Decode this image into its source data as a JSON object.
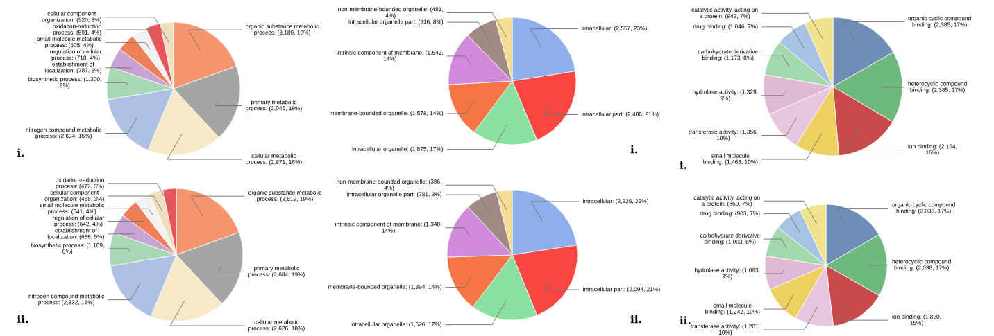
{
  "chart_data": [
    {
      "type": "pie",
      "categories": [
        "organic substance metabolic process",
        "primary metabolic process",
        "cellular metabolic process",
        "nitrogen compound metabolic process",
        "biosynthetic process",
        "establishment of localization",
        "regulation of cellular process",
        "small molecule metabolic process",
        "oxidation-reduction process",
        "cellular component organization"
      ],
      "values": [
        3189,
        3046,
        2971,
        2634,
        1300,
        787,
        718,
        605,
        591,
        520
      ],
      "value_labels": [
        "(3,189, 19%)",
        "(3,046, 19%)",
        "(2,971, 18%)",
        "(2,634, 16%)",
        "(1,300, 8%)",
        "(787, 5%)",
        "(718, 4%)",
        "(605, 4%)",
        "(591, 4%)",
        "(520, 3%)"
      ],
      "colors": [
        "#f7956f",
        "#a5a5a5",
        "#f8e9c6",
        "#aec0e5",
        "#a6d8b3",
        "#c9a3d4",
        "#f07f58",
        "#f2f2f2",
        "#e8555a",
        "#efdfbf"
      ],
      "annotations": [
        "i."
      ]
    },
    {
      "type": "pie",
      "categories": [
        "intracellular",
        "intracellular part",
        "intracellular organelle",
        "membrane-bounded organelle",
        "intrinsic component of membrane",
        "intracellular organelle part",
        "non-membrane-bounded organelle"
      ],
      "values": [
        2557,
        2406,
        1875,
        1578,
        1542,
        916,
        481
      ],
      "value_labels": [
        "(2,557, 23%)",
        "(2,406, 21%)",
        "(1,875, 17%)",
        "(1,578, 14%)",
        "(1,542, 14%)",
        "(916, 8%)",
        "(481, 4%)"
      ],
      "colors": [
        "#8db0ea",
        "#f84643",
        "#89e0a0",
        "#f57545",
        "#d189dc",
        "#a08a86",
        "#f7dc96"
      ],
      "annotations": [
        "i."
      ]
    },
    {
      "type": "pie",
      "categories": [
        "organic cyclic compound binding",
        "heterocyclic compound binding",
        "ion binding",
        "small molecule binding",
        "transferase activity",
        "hydrolase activity",
        "carbohydrate derivative binding",
        "drug binding",
        "catalytic activity, acting on a protein"
      ],
      "values": [
        2385,
        2385,
        2154,
        1463,
        1356,
        1329,
        1173,
        1046,
        943
      ],
      "value_labels": [
        "(2,385, 17%)",
        "(2,385, 17%)",
        "(2,154, 15%)",
        "(1,463, 10%)",
        "(1,356, 10%)",
        "(1,329, 9%)",
        "(1,173, 8%)",
        "(1,046, 7%)",
        "(943, 7%)"
      ],
      "colors": [
        "#6f8db7",
        "#6fb87f",
        "#c94a4a",
        "#ecd060",
        "#e8c5df",
        "#dfbad5",
        "#a4d8ad",
        "#a8c2e6",
        "#f0e38c"
      ],
      "annotations": [
        "i."
      ]
    },
    {
      "type": "pie",
      "categories": [
        "organic substance metabolic process",
        "primary metabolic process",
        "cellular metabolic process",
        "nitrogen compound metabolic process",
        "biosynthetic process",
        "establishment of localization",
        "regulation of cellular process",
        "small molecule metabolic process",
        "cellular component organization",
        "oxidation-reduction process"
      ],
      "values": [
        2819,
        2684,
        2626,
        2332,
        1169,
        686,
        642,
        541,
        488,
        472
      ],
      "value_labels": [
        "(2,819, 19%)",
        "(2,684, 19%)",
        "(2,626, 18%)",
        "(2,332, 16%)",
        "(1,169, 8%)",
        "(686, 5%)",
        "(642, 4%)",
        "(541, 4%)",
        "(488, 3%)",
        "(472, 3%)"
      ],
      "colors": [
        "#f7956f",
        "#a5a5a5",
        "#f8e9c6",
        "#aec0e5",
        "#a6d8b3",
        "#c9a3d4",
        "#f07f58",
        "#f2f2f2",
        "#efdfbf",
        "#e8555a"
      ],
      "annotations": [
        "ii."
      ]
    },
    {
      "type": "pie",
      "categories": [
        "intracellular",
        "intracellular part",
        "intracellular organelle",
        "membrane-bounded organelle",
        "intrinsic component of membrane",
        "intracellular organelle part",
        "non-membrane-bounded organelle"
      ],
      "values": [
        2225,
        2094,
        1626,
        1394,
        1348,
        781,
        386
      ],
      "value_labels": [
        "(2,225, 23%)",
        "(2,094, 21%)",
        "(1,626, 17%)",
        "(1,394, 14%)",
        "(1,348, 14%)",
        "(781, 8%)",
        "(386, 4%)"
      ],
      "colors": [
        "#8db0ea",
        "#f84643",
        "#89e0a0",
        "#f57545",
        "#d189dc",
        "#a08a86",
        "#f7dc96"
      ],
      "annotations": [
        "ii."
      ]
    },
    {
      "type": "pie",
      "categories": [
        "organic cyclic compound binding",
        "heterocyclic compound binding",
        "ion binding",
        "transferase activity",
        "small molecule binding",
        "hydrolase activity",
        "carbohydrate derivative binding",
        "drug binding",
        "catalytic activity, acting on a protein"
      ],
      "values": [
        2038,
        2038,
        1820,
        1261,
        1242,
        1093,
        1003,
        903,
        860
      ],
      "value_labels": [
        "(2,038, 17%)",
        "(2,038, 17%)",
        "(1,820, 15%)",
        "(1,261, 10%)",
        "(1,242, 10%)",
        "(1,093, 9%)",
        "(1,003, 8%)",
        "(903, 7%)",
        "(860, 7%)"
      ],
      "colors": [
        "#6f8db7",
        "#6fb87f",
        "#c94a4a",
        "#e8c5df",
        "#ecd060",
        "#dfbad5",
        "#a4d8ad",
        "#a8c2e6",
        "#f0e38c"
      ],
      "annotations": [
        "ii."
      ]
    }
  ]
}
